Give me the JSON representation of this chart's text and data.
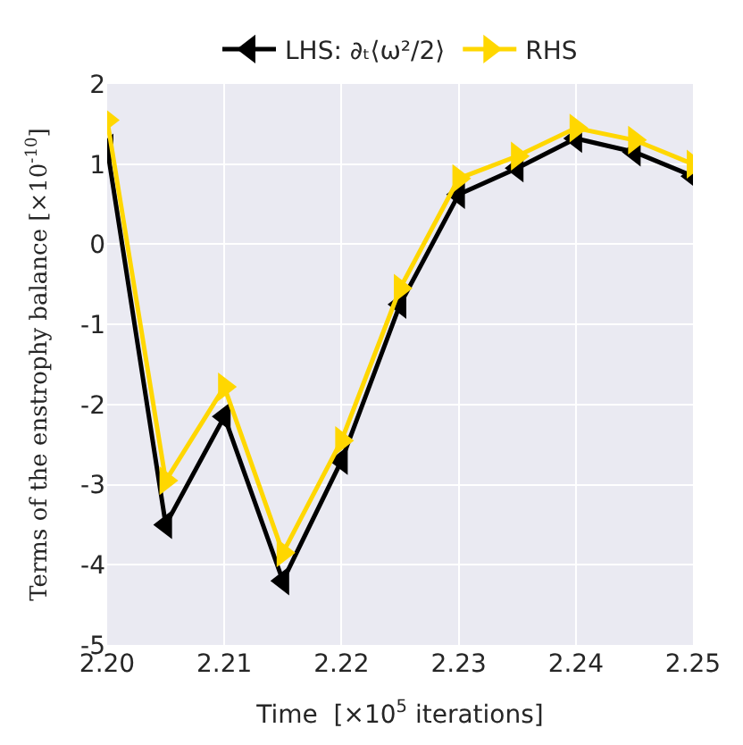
{
  "chart_data": {
    "type": "line",
    "xlabel": "Time  [×10$^{5}$ iterations]",
    "ylabel": "Terms of the enstrophy balance [×10$^{-10}$]",
    "x": [
      2.2,
      2.205,
      2.21,
      2.215,
      2.22,
      2.225,
      2.23,
      2.235,
      2.24,
      2.245,
      2.25
    ],
    "series": [
      {
        "name": "LHS: ∂ₜ⟨ω²/2⟩",
        "color": "#000000",
        "marker": "triangle-left",
        "values": [
          1.2,
          -3.5,
          -2.15,
          -4.2,
          -2.7,
          -0.75,
          0.62,
          0.95,
          1.32,
          1.15,
          0.85
        ]
      },
      {
        "name": "RHS",
        "color": "#ffd700",
        "marker": "triangle-right",
        "values": [
          1.55,
          -2.95,
          -1.78,
          -3.85,
          -2.45,
          -0.55,
          0.82,
          1.1,
          1.45,
          1.3,
          1.0
        ]
      }
    ],
    "xlim": [
      2.2,
      2.25
    ],
    "xticks": [
      {
        "value": 2.2,
        "label": "2.20"
      },
      2.21,
      2.22,
      2.23,
      2.24,
      2.25
    ],
    "ylim": [
      -5,
      2
    ],
    "yticks": [
      -5,
      -4,
      -3,
      -2,
      -1,
      0,
      1,
      2
    ],
    "grid": true,
    "legend": "top",
    "line_style": "solid"
  }
}
